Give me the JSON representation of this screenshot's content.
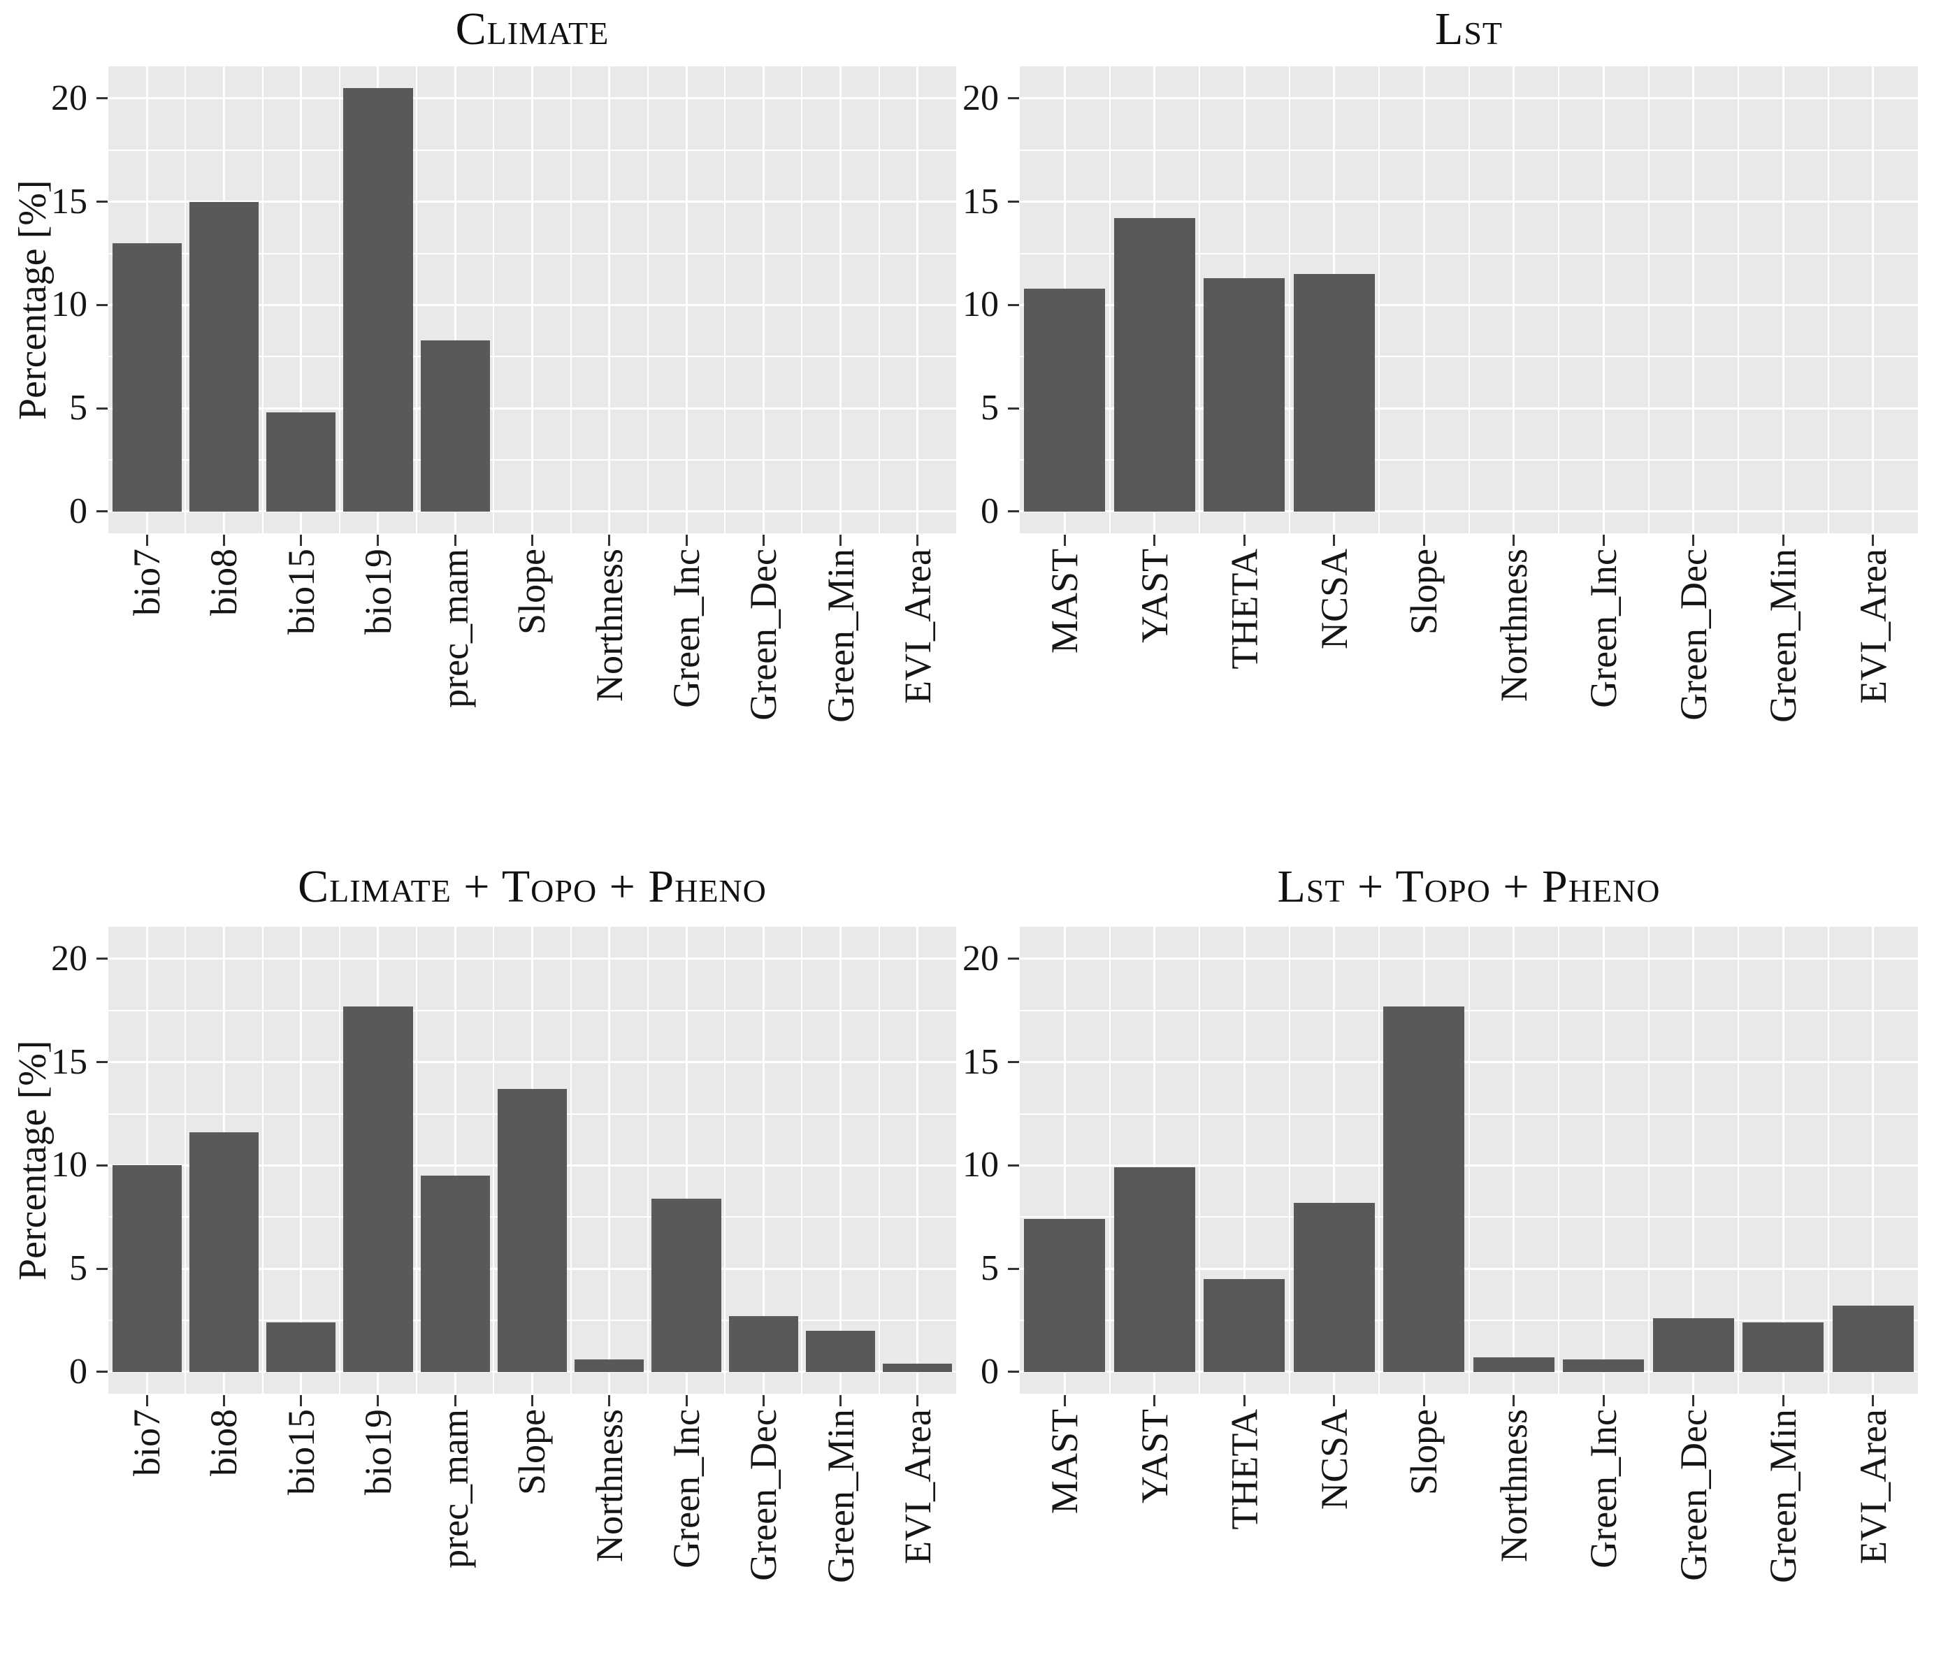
{
  "style": {
    "page_background": "#FFFFFF",
    "panel_background": "#E9E9E9",
    "grid_color": "#FFFFFF",
    "bar_color": "#595959",
    "axis_text_color": "#151515",
    "tick_mark_color": "#333333"
  },
  "y_axis": {
    "label": "Percentage [%]",
    "ticks": [
      0,
      5,
      10,
      15,
      20
    ]
  },
  "chart_data": [
    {
      "id": "climate",
      "type": "bar",
      "position": "top-left",
      "title": "Climate",
      "categories": [
        "bio7",
        "bio8",
        "bio15",
        "bio19",
        "prec_mam",
        "Slope",
        "Northness",
        "Green_Inc",
        "Green_Dec",
        "Green_Min",
        "EVI_Area"
      ],
      "values": [
        13.0,
        15.0,
        4.8,
        20.5,
        8.3,
        0,
        0,
        0,
        0,
        0,
        0
      ],
      "xlabel": "",
      "ylabel": "Percentage [%]",
      "yticks": [
        0,
        5,
        10,
        15,
        20
      ],
      "ylim": [
        0,
        21.5
      ],
      "grid": true,
      "legend": false
    },
    {
      "id": "lst",
      "type": "bar",
      "position": "top-right",
      "title": "Lst",
      "categories": [
        "MAST",
        "YAST",
        "THETA",
        "NCSA",
        "Slope",
        "Northness",
        "Green_Inc",
        "Green_Dec",
        "Green_Min",
        "EVI_Area"
      ],
      "values": [
        10.8,
        14.2,
        11.3,
        11.5,
        0,
        0,
        0,
        0,
        0,
        0
      ],
      "xlabel": "",
      "ylabel": "",
      "yticks": [
        0,
        5,
        10,
        15,
        20
      ],
      "ylim": [
        0,
        21.5
      ],
      "grid": true,
      "legend": false
    },
    {
      "id": "climate-topo-pheno",
      "type": "bar",
      "position": "bottom-left",
      "title": "Climate + Topo + Pheno",
      "categories": [
        "bio7",
        "bio8",
        "bio15",
        "bio19",
        "prec_mam",
        "Slope",
        "Northness",
        "Green_Inc",
        "Green_Dec",
        "Green_Min",
        "EVI_Area"
      ],
      "values": [
        10.0,
        11.6,
        2.4,
        17.7,
        9.5,
        13.7,
        0.6,
        8.4,
        2.7,
        2.0,
        0.4
      ],
      "xlabel": "",
      "ylabel": "Percentage [%]",
      "yticks": [
        0,
        5,
        10,
        15,
        20
      ],
      "ylim": [
        0,
        21.5
      ],
      "grid": true,
      "legend": false
    },
    {
      "id": "lst-topo-pheno",
      "type": "bar",
      "position": "bottom-right",
      "title": "Lst + Topo + Pheno",
      "categories": [
        "MAST",
        "YAST",
        "THETA",
        "NCSA",
        "Slope",
        "Northness",
        "Green_Inc",
        "Green_Dec",
        "Green_Min",
        "EVI_Area"
      ],
      "values": [
        7.4,
        9.9,
        4.5,
        8.2,
        17.7,
        0.7,
        0.6,
        2.6,
        2.4,
        3.2
      ],
      "xlabel": "",
      "ylabel": "",
      "yticks": [
        0,
        5,
        10,
        15,
        20
      ],
      "ylim": [
        0,
        21.5
      ],
      "grid": true,
      "legend": false
    }
  ]
}
